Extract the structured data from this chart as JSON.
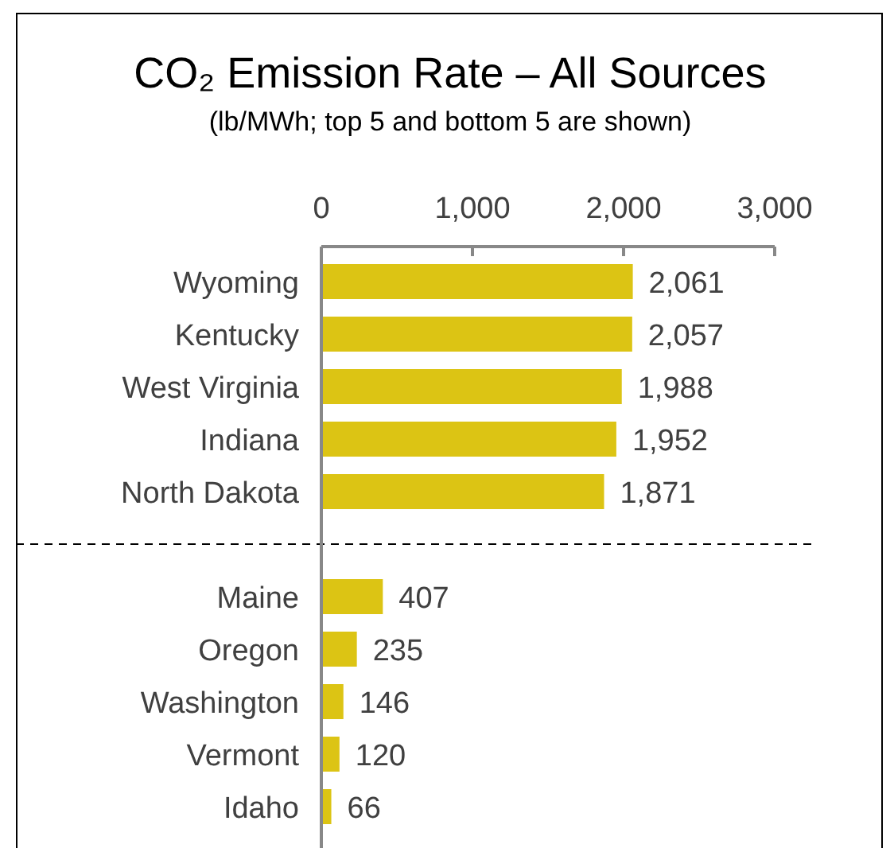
{
  "chart_data": {
    "type": "bar",
    "orientation": "horizontal",
    "title": "CO₂ Emission Rate – All Sources",
    "subtitle": "(lb/MWh; top 5 and bottom 5 are shown)",
    "categories": [
      "Wyoming",
      "Kentucky",
      "West Virginia",
      "Indiana",
      "North Dakota",
      null,
      "Maine",
      "Oregon",
      "Washington",
      "Vermont",
      "Idaho"
    ],
    "values": [
      2061,
      2057,
      1988,
      1952,
      1871,
      null,
      407,
      235,
      146,
      120,
      66
    ],
    "color": "#dcc414",
    "xlim": [
      0,
      3000
    ],
    "xticks": [
      0,
      {
        "value": 1000,
        "label": "1,000"
      },
      {
        "value": 2000,
        "label": "2,000"
      },
      {
        "value": 3000,
        "label": "3,000"
      }
    ],
    "value_labels": [
      "2,061",
      "2,057",
      "1,988",
      "1,952",
      "1,871",
      null,
      "407",
      "235",
      "146",
      "120",
      "66"
    ],
    "grid": false,
    "ref_lines": [
      {
        "axis": "y",
        "value": null,
        "line_style": "dashed",
        "color": "#000000"
      }
    ]
  }
}
